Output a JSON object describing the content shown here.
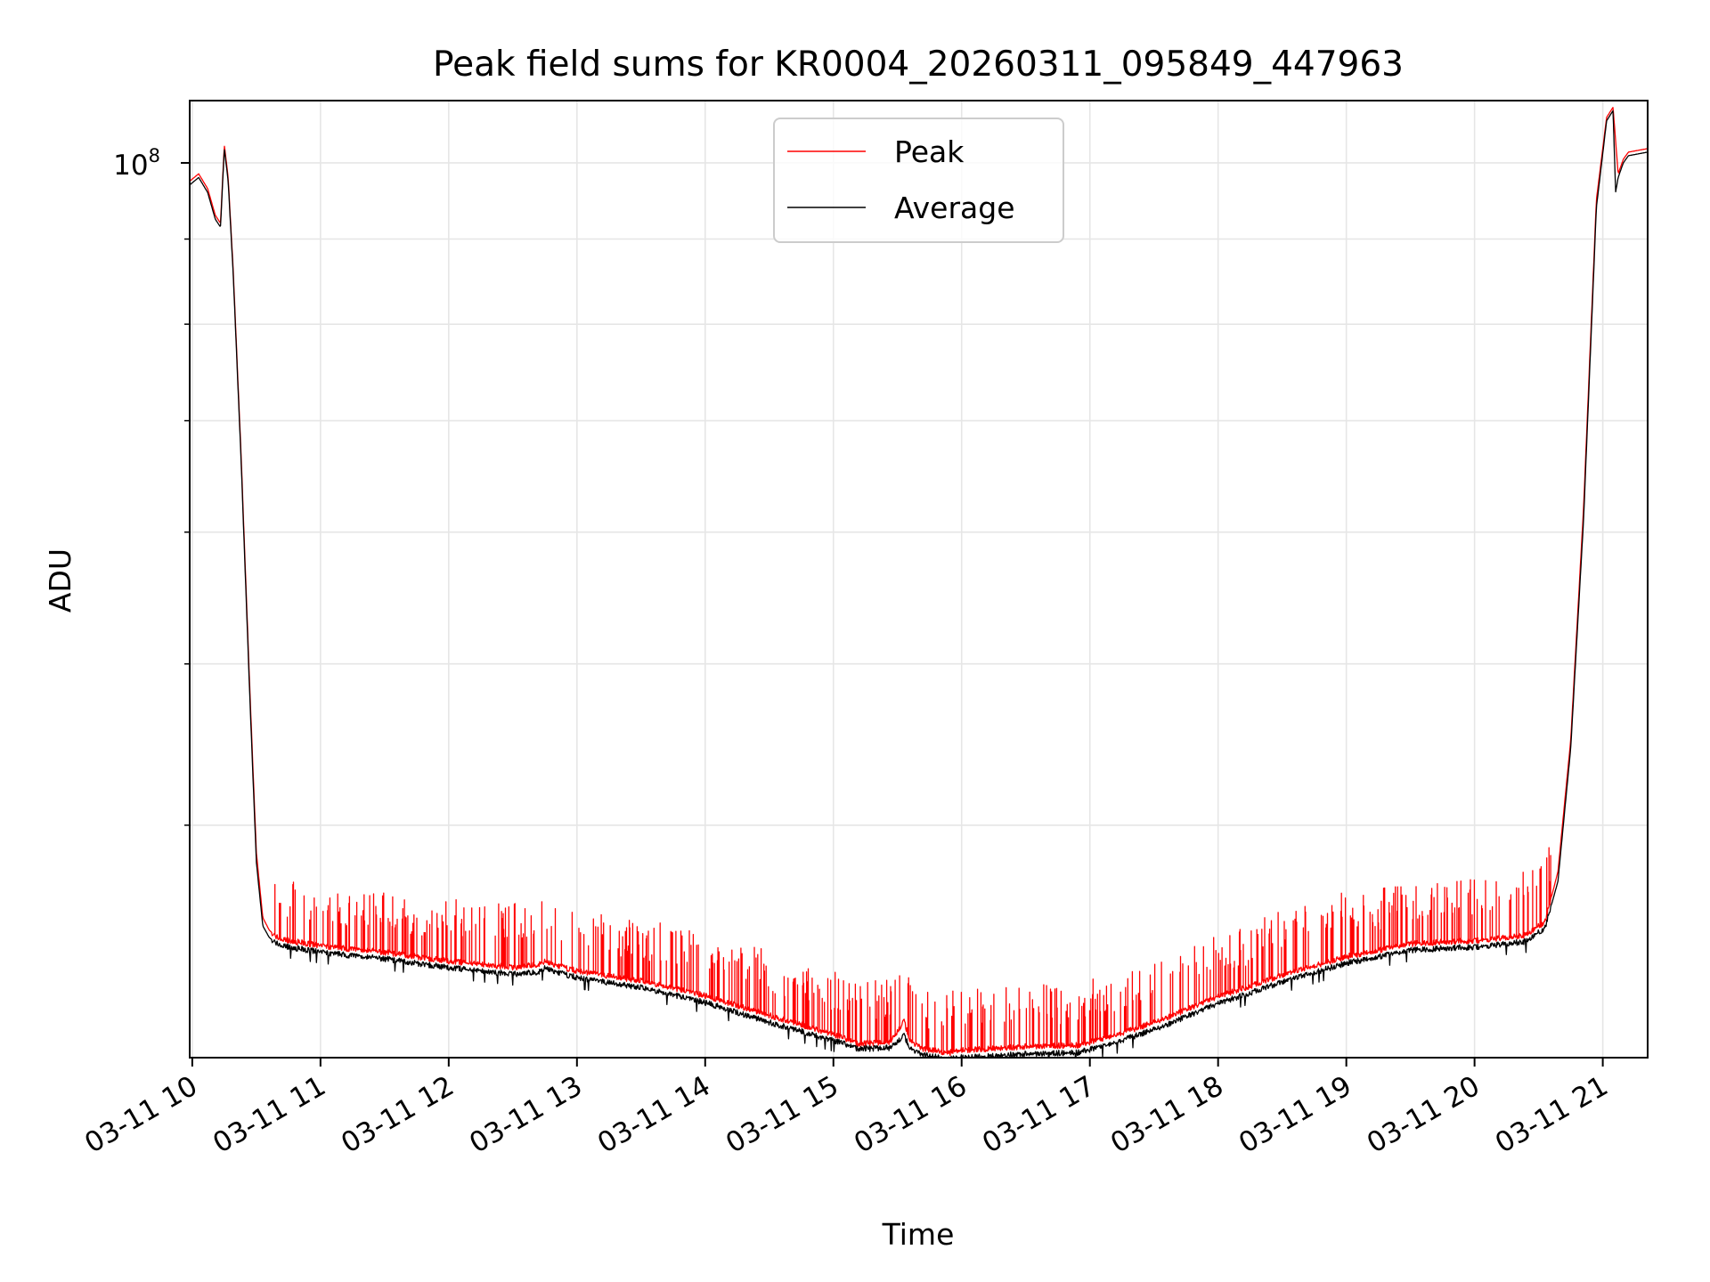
{
  "chart_data": {
    "type": "line",
    "title": "Peak field sums for KR0004_20260311_095849_447963",
    "xlabel": "Time",
    "ylabel": "ADU",
    "yscale": "log",
    "ylim": [
      29000000,
      109000000
    ],
    "xlim": [
      9.98,
      21.35
    ],
    "grid": true,
    "legend_position": "upper center",
    "x_ticks": [
      10,
      11,
      12,
      13,
      14,
      15,
      16,
      17,
      18,
      19,
      20,
      21
    ],
    "x_tick_labels": [
      "03-11 10",
      "03-11 11",
      "03-11 12",
      "03-11 13",
      "03-11 14",
      "03-11 15",
      "03-11 16",
      "03-11 17",
      "03-11 18",
      "03-11 19",
      "03-11 20",
      "03-11 21"
    ],
    "y_major_tick": {
      "value": 100000000,
      "base": "10",
      "exponent": "8"
    },
    "y_minor_ticks": [
      40000000,
      50000000,
      60000000,
      70000000,
      80000000,
      90000000
    ],
    "series": [
      {
        "name": "Peak",
        "color": "#ff0000",
        "spike_width": 0.09,
        "x": [
          9.98,
          10.05,
          10.12,
          10.18,
          10.22,
          10.25,
          10.28,
          10.32,
          10.38,
          10.45,
          10.5,
          10.55,
          10.6,
          10.65,
          10.7,
          10.75,
          11.0,
          11.5,
          12.0,
          12.5,
          12.7,
          12.75,
          12.8,
          13.0,
          13.5,
          14.0,
          14.5,
          15.0,
          15.2,
          15.45,
          15.55,
          15.6,
          15.7,
          15.9,
          16.0,
          16.5,
          16.9,
          17.2,
          17.6,
          18.0,
          18.5,
          19.0,
          19.5,
          20.0,
          20.4,
          20.55,
          20.65,
          20.75,
          20.85,
          20.95,
          21.03,
          21.08,
          21.12,
          21.16,
          21.2,
          21.35
        ],
        "y": [
          97500000,
          98500000,
          96500000,
          93000000,
          92000000,
          102500000,
          98000000,
          86000000,
          67000000,
          48000000,
          38500000,
          35200000,
          34600000,
          34300000,
          34150000,
          34100000,
          33850000,
          33550000,
          33150000,
          32850000,
          33000000,
          33150000,
          33000000,
          32700000,
          32250000,
          31600000,
          30750000,
          29950000,
          29550000,
          29650000,
          30500000,
          29700000,
          29350000,
          29200000,
          29300000,
          29450000,
          29500000,
          29900000,
          30650000,
          31550000,
          32500000,
          33350000,
          33950000,
          34100000,
          34350000,
          35000000,
          37500000,
          45000000,
          62000000,
          95000000,
          106500000,
          108000000,
          98500000,
          100500000,
          101500000,
          102000000
        ]
      },
      {
        "name": "Average",
        "color": "#000000",
        "x": [
          9.98,
          10.05,
          10.12,
          10.18,
          10.22,
          10.25,
          10.28,
          10.32,
          10.38,
          10.45,
          10.5,
          10.55,
          10.6,
          10.65,
          10.7,
          10.75,
          11.0,
          11.5,
          12.0,
          12.5,
          12.7,
          12.75,
          12.8,
          13.0,
          13.5,
          14.0,
          14.5,
          15.0,
          15.2,
          15.45,
          15.55,
          15.6,
          15.7,
          15.9,
          16.0,
          16.5,
          16.9,
          17.2,
          17.6,
          18.0,
          18.5,
          19.0,
          19.5,
          20.0,
          20.4,
          20.55,
          20.65,
          20.75,
          20.85,
          20.95,
          21.03,
          21.08,
          21.1,
          21.12,
          21.16,
          21.2,
          21.35
        ],
        "y": [
          97000000,
          98000000,
          96000000,
          92500000,
          91500000,
          102000000,
          97500000,
          85500000,
          66500000,
          47500000,
          38000000,
          34800000,
          34250000,
          34000000,
          33850000,
          33800000,
          33550000,
          33250000,
          32850000,
          32550000,
          32650000,
          32850000,
          32700000,
          32400000,
          31950000,
          31300000,
          30450000,
          29700000,
          29350000,
          29400000,
          29900000,
          29400000,
          29100000,
          28950000,
          29000000,
          29150000,
          29200000,
          29600000,
          30350000,
          31250000,
          32200000,
          33050000,
          33650000,
          33800000,
          34050000,
          34700000,
          37000000,
          44500000,
          61000000,
          94000000,
          106000000,
          107500000,
          96000000,
          98000000,
          100000000,
          101000000,
          101500000
        ]
      }
    ]
  }
}
